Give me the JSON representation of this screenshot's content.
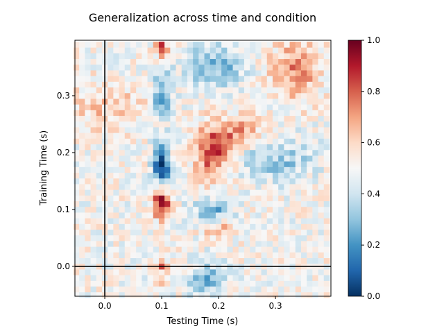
{
  "chart_data": {
    "type": "heatmap",
    "title": "Generalization across time and condition",
    "xlabel": "Testing Time (s)",
    "ylabel": "Training Time (s)",
    "xlim": [
      -0.0525,
      0.3975
    ],
    "ylim": [
      -0.0525,
      0.3975
    ],
    "x_ticks": [
      0.0,
      0.1,
      0.2,
      0.3
    ],
    "x_tick_labels": [
      "0.0",
      "0.1",
      "0.2",
      "0.3"
    ],
    "y_ticks": [
      0.0,
      0.1,
      0.2,
      0.3
    ],
    "y_tick_labels": [
      "0.0",
      "0.1",
      "0.2",
      "0.3"
    ],
    "colormap": "RdBu_r",
    "vmin": 0.0,
    "vmax": 1.0,
    "colorbar_ticks": [
      0.0,
      0.2,
      0.4,
      0.6,
      0.8,
      1.0
    ],
    "colorbar_tick_labels": [
      "0.0",
      "0.2",
      "0.4",
      "0.6",
      "0.8",
      "1.0"
    ],
    "reference_lines": {
      "vertical_x": 0.0,
      "horizontal_y": 0.0
    },
    "grid": false,
    "n_times": 45,
    "time_start": -0.05,
    "time_step": 0.01
  }
}
